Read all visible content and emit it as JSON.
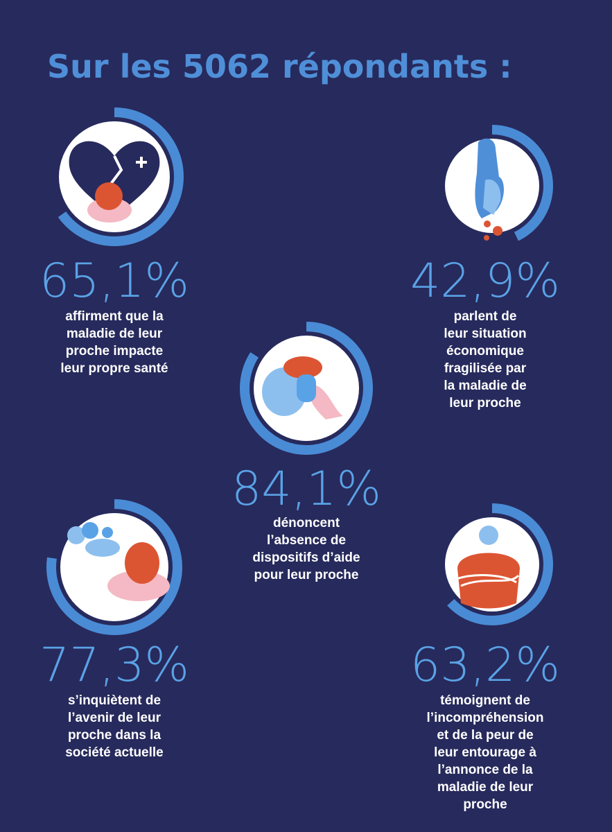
{
  "title": "Sur les 5062 répondants :",
  "stats": [
    {
      "value": 65.1,
      "label": "65,1%",
      "lines": [
        "affirment que la",
        "maladie de leur",
        "proche impacte",
        "leur propre santé"
      ]
    },
    {
      "value": 42.9,
      "label": "42,9%",
      "lines": [
        "parlent de",
        "leur situation",
        "économique",
        "fragilisée par",
        "la maladie de",
        "leur proche"
      ]
    },
    {
      "value": 84.1,
      "label": "84,1%",
      "lines": [
        "dénoncent",
        "l’absence de",
        "dispositifs d’aide",
        "pour leur proche"
      ]
    },
    {
      "value": 77.3,
      "label": "77,3%",
      "lines": [
        "s’inquiètent de",
        "l’avenir de leur",
        "proche dans la",
        "société actuelle"
      ]
    },
    {
      "value": 63.2,
      "label": "63,2%",
      "lines": [
        "témoignent de",
        "l’incompréhension",
        "et de la peur de",
        "leur entourage à",
        "l’annonce de la",
        "maladie de leur",
        "proche"
      ]
    }
  ]
}
